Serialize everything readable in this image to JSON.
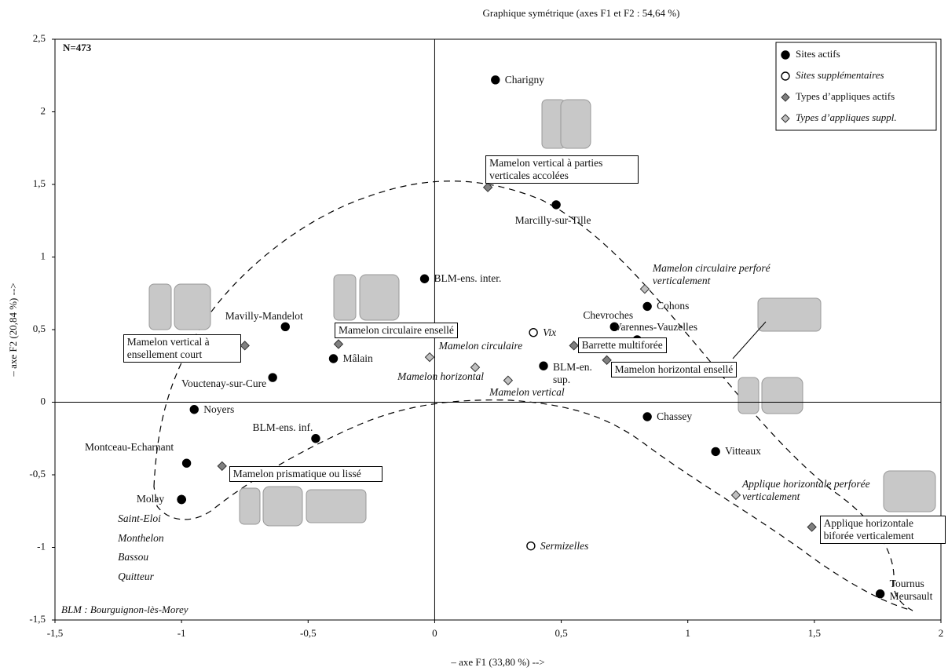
{
  "chart_data": {
    "type": "scatter",
    "title": "Graphique symétrique (axes F1 et F2 : 54,64 %)",
    "x_label": "– axe F1 (33,80 %) -->",
    "y_label": "– axe F2 (20,84 %) -->",
    "annotations": [
      "N=473",
      "BLM : Bourguignon-lès-Morey"
    ],
    "xlim": [
      -1.5,
      2
    ],
    "ylim": [
      -1.5,
      2.5
    ],
    "xticks": [
      {
        "value": -1.5,
        "label": "-1,5"
      },
      -1,
      {
        "value": -0.5,
        "label": "-0,5"
      },
      0,
      {
        "value": 0.5,
        "label": "0,5"
      },
      1,
      {
        "value": 1.5,
        "label": "1,5"
      },
      2
    ],
    "yticks": [
      {
        "value": 2.5,
        "label": "2,5"
      },
      2,
      {
        "value": 1.5,
        "label": "1,5"
      },
      1,
      {
        "value": 0.5,
        "label": "0,5"
      },
      0,
      {
        "value": -0.5,
        "label": "-0,5"
      },
      -1,
      {
        "value": -1.5,
        "label": "-1,5"
      }
    ],
    "legend": "top-right",
    "series": [
      {
        "name": "Sites actifs",
        "marker": "circle",
        "color": "#000000",
        "labels": [
          "Charigny",
          "Marcilly-sur-Tille",
          "BLM-ens. inter.",
          "Mavilly-Mandelot",
          "Mâlain",
          "Vouctenay-sur-Cure",
          "Noyers",
          "BLM-ens. inf.",
          "Montceau-Echarnant",
          "Molay",
          "BLM-en. sup.",
          "Chevroches",
          "Varennes-Vauzelles",
          "Cohons",
          "Chassey",
          "Vitteaux",
          "Tournus Meursault"
        ],
        "x": [
          0.24,
          0.48,
          -0.04,
          -0.59,
          -0.4,
          -0.64,
          -0.95,
          -0.47,
          -0.98,
          -1.0,
          0.43,
          0.71,
          0.8,
          0.84,
          0.84,
          1.11,
          1.76
        ],
        "values": [
          2.22,
          1.36,
          0.85,
          0.52,
          0.3,
          0.17,
          -0.05,
          -0.25,
          -0.42,
          -0.67,
          0.25,
          0.52,
          0.43,
          0.66,
          -0.1,
          -0.34,
          -1.32
        ]
      },
      {
        "name": "Sites supplémentaires",
        "marker": "circle",
        "color": "#ffffff",
        "italic": true,
        "labels": [
          "Vix",
          "Sermizelles",
          "Saint-Eloi",
          "Monthelon",
          "Bassou",
          "Quitteur"
        ],
        "x": [
          0.39,
          0.38,
          -1.0,
          -1.0,
          -1.0,
          -1.0
        ],
        "values": [
          0.48,
          -0.99,
          -0.67,
          -0.67,
          -0.67,
          -0.67
        ]
      },
      {
        "name": "Types d’appliques actifs",
        "marker": "diamond",
        "color": "#808080",
        "boxed": true,
        "labels": [
          "Mamelon vertical à parties verticales accolées",
          "Mamelon circulaire ensellé",
          "Mamelon vertical à ensellement court",
          "Barrette multiforée",
          "Mamelon horizontal ensellé",
          "Mamelon prismatique ou lissé",
          "Applique horizontale biforée verticalement"
        ],
        "x": [
          0.21,
          -0.38,
          -0.75,
          0.55,
          0.68,
          -0.84,
          1.49
        ],
        "values": [
          1.48,
          0.4,
          0.39,
          0.39,
          0.29,
          -0.44,
          -0.86
        ]
      },
      {
        "name": "Types d’appliques suppl.",
        "marker": "diamond",
        "color": "#c0c0c0",
        "italic": true,
        "labels": [
          "Mamelon circulaire",
          "Mamelon horizontal",
          "Mamelon vertical",
          "Mamelon circulaire perforé verticalement",
          "Applique horizontale perforée verticalement"
        ],
        "x": [
          -0.02,
          0.16,
          0.29,
          0.83,
          1.19
        ],
        "values": [
          0.31,
          0.24,
          0.15,
          0.78,
          -0.64
        ]
      }
    ]
  }
}
